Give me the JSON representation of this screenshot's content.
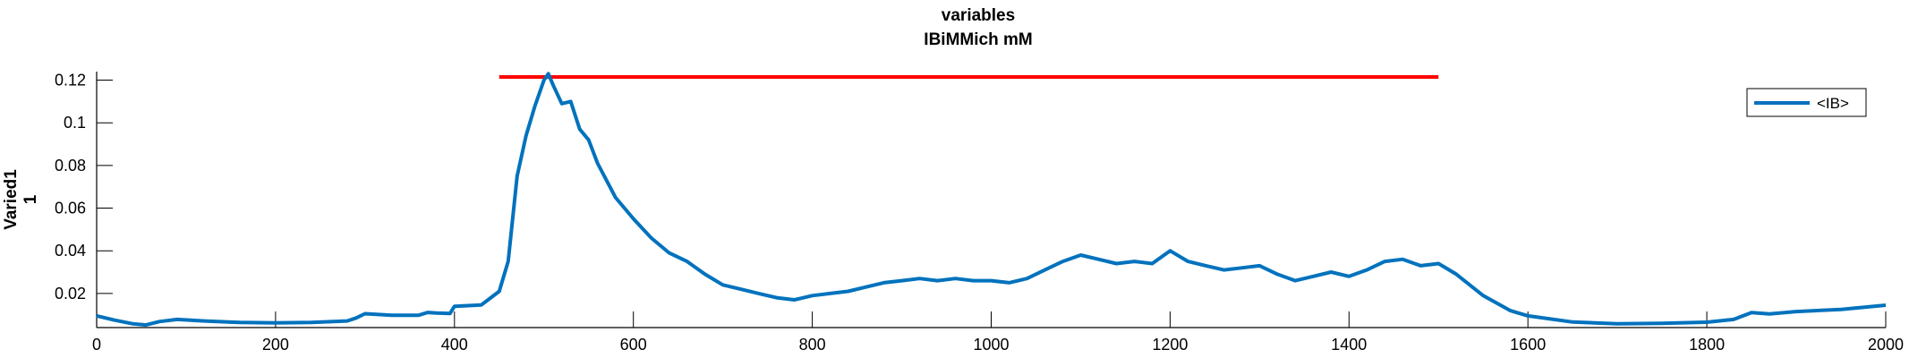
{
  "chart_data": {
    "type": "line",
    "title": [
      "variables",
      "IBiMMich mM"
    ],
    "ylabel": [
      "Varied1",
      "1"
    ],
    "xlabel": "",
    "xlim": [
      0,
      2000
    ],
    "ylim": [
      0.004,
      0.124
    ],
    "x_ticks": [
      0,
      200,
      400,
      600,
      800,
      1000,
      1200,
      1400,
      1600,
      1800,
      2000
    ],
    "y_ticks": [
      0.02,
      0.04,
      0.06,
      0.08,
      0.1,
      0.12
    ],
    "y_tick_labels": [
      "0.02",
      "0.04",
      "0.06",
      "0.08",
      "0.1",
      "0.12"
    ],
    "grid": false,
    "legend_position": "top-right",
    "colors": {
      "series": "#0072BD",
      "reference": "#FF0000",
      "axes": "#000000"
    },
    "series": [
      {
        "name": "<IB>",
        "x": [
          0,
          20,
          40,
          55,
          70,
          90,
          120,
          160,
          200,
          240,
          280,
          290,
          300,
          330,
          360,
          370,
          380,
          395,
          400,
          410,
          430,
          440,
          450,
          460,
          470,
          480,
          490,
          500,
          505,
          510,
          520,
          530,
          540,
          550,
          560,
          580,
          600,
          620,
          640,
          660,
          680,
          700,
          720,
          740,
          760,
          780,
          800,
          820,
          840,
          860,
          880,
          900,
          920,
          940,
          960,
          980,
          1000,
          1020,
          1040,
          1060,
          1080,
          1100,
          1120,
          1140,
          1160,
          1180,
          1200,
          1220,
          1240,
          1260,
          1280,
          1300,
          1320,
          1340,
          1360,
          1380,
          1400,
          1420,
          1440,
          1460,
          1480,
          1500,
          1520,
          1550,
          1580,
          1600,
          1650,
          1700,
          1750,
          1800,
          1830,
          1850,
          1870,
          1900,
          1950,
          2000
        ],
        "y": [
          0.0095,
          0.0075,
          0.0058,
          0.0052,
          0.0068,
          0.0078,
          0.0071,
          0.0064,
          0.0062,
          0.0064,
          0.0071,
          0.0085,
          0.0105,
          0.0098,
          0.0098,
          0.0111,
          0.0108,
          0.0106,
          0.014,
          0.0142,
          0.0146,
          0.0178,
          0.021,
          0.035,
          0.075,
          0.094,
          0.108,
          0.12,
          0.123,
          0.118,
          0.109,
          0.11,
          0.097,
          0.092,
          0.081,
          0.065,
          0.055,
          0.046,
          0.039,
          0.035,
          0.029,
          0.024,
          0.022,
          0.02,
          0.018,
          0.017,
          0.019,
          0.02,
          0.021,
          0.023,
          0.025,
          0.026,
          0.027,
          0.026,
          0.027,
          0.026,
          0.026,
          0.025,
          0.027,
          0.031,
          0.035,
          0.038,
          0.036,
          0.034,
          0.035,
          0.034,
          0.04,
          0.035,
          0.033,
          0.031,
          0.032,
          0.033,
          0.029,
          0.026,
          0.028,
          0.03,
          0.028,
          0.031,
          0.035,
          0.036,
          0.033,
          0.034,
          0.029,
          0.019,
          0.012,
          0.0095,
          0.0066,
          0.0058,
          0.006,
          0.0065,
          0.0078,
          0.011,
          0.0104,
          0.0115,
          0.0125,
          0.0145
        ]
      },
      {
        "name": "",
        "kind": "reference-line",
        "x": [
          450,
          1500
        ],
        "y": [
          0.1215,
          0.1215
        ]
      }
    ]
  }
}
